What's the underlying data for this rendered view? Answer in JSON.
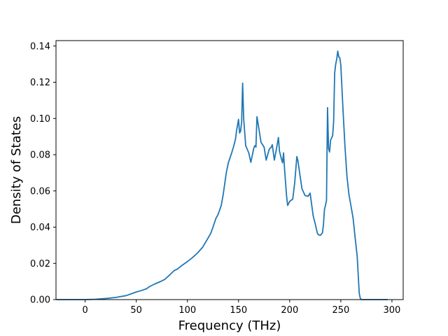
{
  "chart_data": {
    "type": "line",
    "title": "",
    "xlabel": "Frequency (THz)",
    "ylabel": "Density of States",
    "xlim": [
      -28.5,
      311
    ],
    "ylim": [
      0,
      0.143
    ],
    "grid": false,
    "legend": "none",
    "xticks": [
      0,
      50,
      100,
      150,
      200,
      250,
      300
    ],
    "xtick_labels": [
      "0",
      "50",
      "100",
      "150",
      "200",
      "250",
      "300"
    ],
    "yticks": [
      0.0,
      0.02,
      0.04,
      0.06,
      0.08,
      0.1,
      0.12,
      0.14
    ],
    "ytick_labels": [
      "0.00",
      "0.02",
      "0.04",
      "0.06",
      "0.08",
      "0.10",
      "0.12",
      "0.14"
    ],
    "series": [
      {
        "color": "#1f77b4",
        "x": [
          -28,
          0,
          10,
          20,
          30,
          40,
          45,
          50,
          55,
          60,
          63,
          68,
          73,
          78,
          83,
          87,
          90,
          95,
          100,
          105,
          110,
          115,
          120,
          123,
          125,
          128,
          130,
          133,
          135,
          138,
          140,
          143,
          145,
          147,
          148,
          150,
          151,
          152,
          153,
          154,
          155,
          157,
          160,
          162,
          165,
          166,
          167,
          168,
          170,
          172,
          175,
          177,
          180,
          182,
          183,
          185,
          187,
          189,
          190,
          192,
          193,
          194,
          195,
          197,
          198,
          200,
          203,
          205,
          207,
          208,
          210,
          212,
          215,
          218,
          220,
          221,
          223,
          225,
          227,
          228,
          230,
          232,
          233,
          234,
          235,
          236,
          237,
          238,
          239,
          240,
          242,
          243,
          244,
          245,
          246,
          247,
          248,
          249,
          250,
          252,
          254,
          256,
          258,
          260,
          262,
          264,
          266,
          268,
          269,
          270,
          272,
          285,
          296
        ],
        "y": [
          0.0,
          0.0,
          0.0002,
          0.0006,
          0.0012,
          0.0022,
          0.0032,
          0.0042,
          0.005,
          0.006,
          0.0072,
          0.0086,
          0.0098,
          0.0112,
          0.0138,
          0.016,
          0.0168,
          0.019,
          0.021,
          0.0232,
          0.0258,
          0.029,
          0.0338,
          0.0368,
          0.04,
          0.045,
          0.047,
          0.0518,
          0.058,
          0.07,
          0.0755,
          0.0805,
          0.0842,
          0.0885,
          0.093,
          0.0995,
          0.092,
          0.093,
          0.0978,
          0.1195,
          0.1,
          0.085,
          0.081,
          0.0758,
          0.0838,
          0.085,
          0.0842,
          0.101,
          0.094,
          0.0868,
          0.0842,
          0.077,
          0.083,
          0.0842,
          0.0855,
          0.077,
          0.083,
          0.0895,
          0.082,
          0.0775,
          0.0755,
          0.081,
          0.072,
          0.057,
          0.052,
          0.0542,
          0.0555,
          0.065,
          0.079,
          0.0768,
          0.069,
          0.0612,
          0.0575,
          0.057,
          0.0588,
          0.0545,
          0.0462,
          0.0418,
          0.0368,
          0.0358,
          0.0355,
          0.0368,
          0.0412,
          0.0498,
          0.052,
          0.0548,
          0.106,
          0.0835,
          0.0815,
          0.088,
          0.0905,
          0.0985,
          0.125,
          0.13,
          0.1328,
          0.1372,
          0.134,
          0.1335,
          0.1295,
          0.1065,
          0.0852,
          0.068,
          0.0578,
          0.0515,
          0.045,
          0.0342,
          0.024,
          0.0035,
          0.0008,
          0.0,
          0.0,
          0.0,
          0.0
        ]
      }
    ]
  }
}
